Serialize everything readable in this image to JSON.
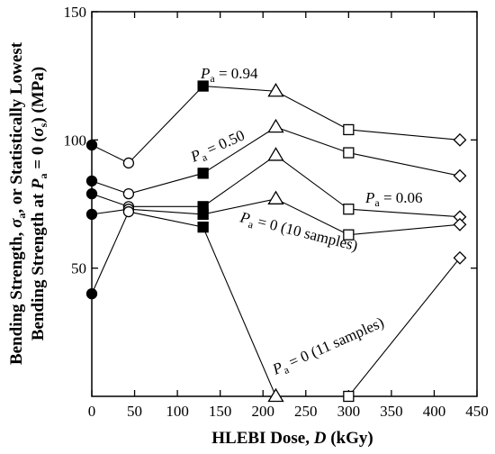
{
  "chart_data": {
    "type": "scatter",
    "title": "",
    "xlabel": "HLEBI Dose, D (kGy)",
    "xlabel_parts": {
      "main": "HLEBI Dose, ",
      "var": "D",
      "unit": " (kGy)"
    },
    "ylabel": "Bending Strength, σa, or Statistically Lowest Bending Strength at Pa = 0 (σs) (MPa)",
    "ylabel_line1": {
      "a": "Bending Strength, ",
      "sigma": "σ",
      "sub": "a",
      "b": ", or Statistically Lowest"
    },
    "ylabel_line2": {
      "a": "Bending Strength at ",
      "P": "P",
      "sub": "a",
      "b": " = 0 (",
      "sigma": "σ",
      "sub2": "s",
      "c": ") (MPa)"
    },
    "xlim": [
      0,
      450
    ],
    "ylim": [
      0,
      150
    ],
    "x_ticks": [
      0,
      50,
      100,
      150,
      200,
      250,
      300,
      350,
      400,
      450
    ],
    "y_ticks": [
      50,
      100,
      150
    ],
    "grid": false,
    "series": [
      {
        "x": [
          0,
          43,
          130,
          215,
          300,
          430
        ],
        "y": [
          98,
          91,
          121,
          119,
          104,
          100
        ],
        "markers": [
          "filled-circle",
          "open-circle",
          "filled-square",
          "open-triangle",
          "open-square",
          "open-diamond"
        ]
      },
      {
        "x": [
          0,
          43,
          130,
          215,
          300,
          430
        ],
        "y": [
          84,
          79,
          87,
          105,
          95,
          86
        ],
        "markers": [
          "filled-circle",
          "open-circle",
          "filled-square",
          "open-triangle",
          "open-square",
          "open-diamond"
        ]
      },
      {
        "x": [
          0,
          43,
          130,
          215,
          300,
          430
        ],
        "y": [
          79,
          74,
          74,
          94,
          73,
          70
        ],
        "markers": [
          "filled-circle",
          "open-circle",
          "filled-square",
          "open-triangle",
          "open-square",
          "open-diamond"
        ]
      },
      {
        "x": [
          0,
          43,
          130,
          215,
          300,
          430
        ],
        "y": [
          71,
          73,
          71,
          77,
          63,
          67
        ],
        "markers": [
          "filled-circle",
          "open-circle",
          "filled-square",
          "open-triangle",
          "open-square",
          "open-diamond"
        ]
      },
      {
        "x": [
          0,
          43,
          130,
          215,
          300,
          430
        ],
        "y": [
          40,
          72,
          66,
          0,
          0,
          54
        ],
        "markers": [
          "filled-circle",
          "open-circle",
          "filled-square",
          "open-triangle",
          "open-square",
          "open-diamond"
        ]
      }
    ],
    "annotations": [
      {
        "P": "P",
        "sub": "a",
        "text": " = 0.94"
      },
      {
        "P": "P",
        "sub": "a",
        "text": " = 0.50"
      },
      {
        "P": "P",
        "sub": "a",
        "text": " = 0.06"
      },
      {
        "P": "P",
        "sub": "a",
        "text": " = 0 (10 samples)"
      },
      {
        "P": "P",
        "sub": "a",
        "text": " = 0 (11 samples)"
      }
    ]
  }
}
